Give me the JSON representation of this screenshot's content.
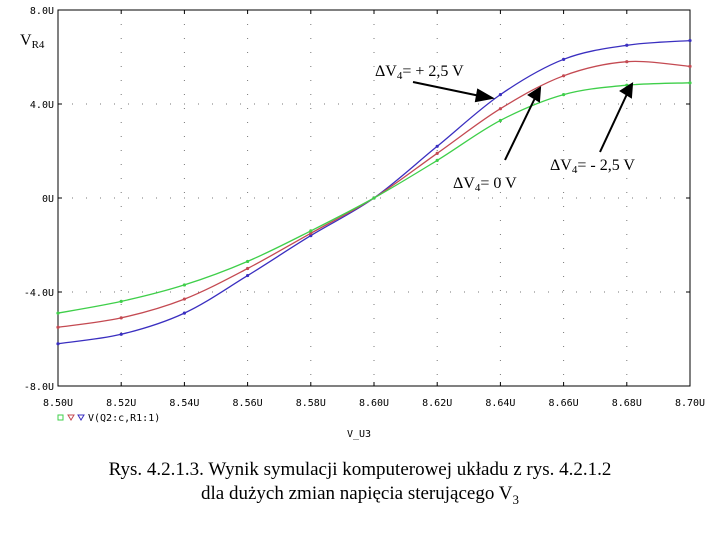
{
  "chart_data": {
    "type": "line",
    "ylabel_main": "V",
    "ylabel_sub": "R4",
    "xlabel": "V_U3",
    "xlim": [
      8.5,
      8.7
    ],
    "ylim": [
      -8.0,
      8.0
    ],
    "x_ticks": [
      "8.50U",
      "8.52U",
      "8.54U",
      "8.56U",
      "8.58U",
      "8.60U",
      "8.62U",
      "8.64U",
      "8.66U",
      "8.68U",
      "8.70U"
    ],
    "y_ticks": [
      "8.0U",
      "4.0U",
      "0U",
      "-4.0U",
      "-8.0U"
    ],
    "y_tick_values": [
      8,
      4,
      0,
      -4,
      -8
    ],
    "legend_text": "V(Q2:c,R1:1)",
    "grid": "dotted",
    "series": [
      {
        "color": "#3a2fc0",
        "x": [
          8.5,
          8.52,
          8.54,
          8.56,
          8.58,
          8.6,
          8.62,
          8.64,
          8.66,
          8.68,
          8.7
        ],
        "values": [
          -6.2,
          -5.8,
          -4.9,
          -3.3,
          -1.6,
          0.0,
          2.2,
          4.4,
          5.9,
          6.5,
          6.7
        ]
      },
      {
        "color": "#c44a52",
        "x": [
          8.5,
          8.52,
          8.54,
          8.56,
          8.58,
          8.6,
          8.62,
          8.64,
          8.66,
          8.68,
          8.7
        ],
        "values": [
          -5.5,
          -5.1,
          -4.3,
          -3.0,
          -1.5,
          0.0,
          1.9,
          3.8,
          5.2,
          5.8,
          5.6
        ]
      },
      {
        "color": "#3fcf4a",
        "x": [
          8.5,
          8.52,
          8.54,
          8.56,
          8.58,
          8.6,
          8.62,
          8.64,
          8.66,
          8.68,
          8.7
        ],
        "values": [
          -4.9,
          -4.4,
          -3.7,
          -2.7,
          -1.4,
          0.0,
          1.6,
          3.3,
          4.4,
          4.8,
          4.9
        ]
      }
    ],
    "annotations": [
      {
        "delta": "Δ",
        "main": "V",
        "sub": "4",
        "rest": "= + 2,5 V"
      },
      {
        "delta": "Δ",
        "main": "V",
        "sub": "4",
        "rest": "= 0 V"
      },
      {
        "delta": "Δ",
        "main": "V",
        "sub": "4",
        "rest": "= - 2,5 V"
      }
    ]
  },
  "caption": {
    "line1": "Rys. 4.2.1.3. Wynik symulacji komputerowej układu z rys. 4.2.1.2",
    "line2_main": "dla dużych zmian napięcia sterującego V",
    "line2_sub": "3"
  }
}
